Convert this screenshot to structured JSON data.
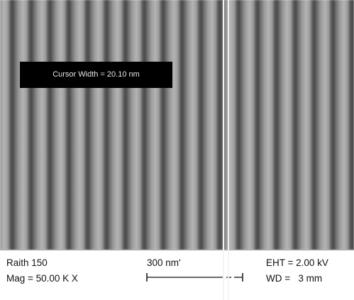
{
  "cursor_label": "Cursor Width = 20.10 nm",
  "info_bar": {
    "instrument": "Raith 150",
    "magnification": "Mag = 50.00 K X",
    "scale": "300 nm'",
    "eht": "EHT = 2.00 kV",
    "wd": "WD =   3 mm"
  }
}
